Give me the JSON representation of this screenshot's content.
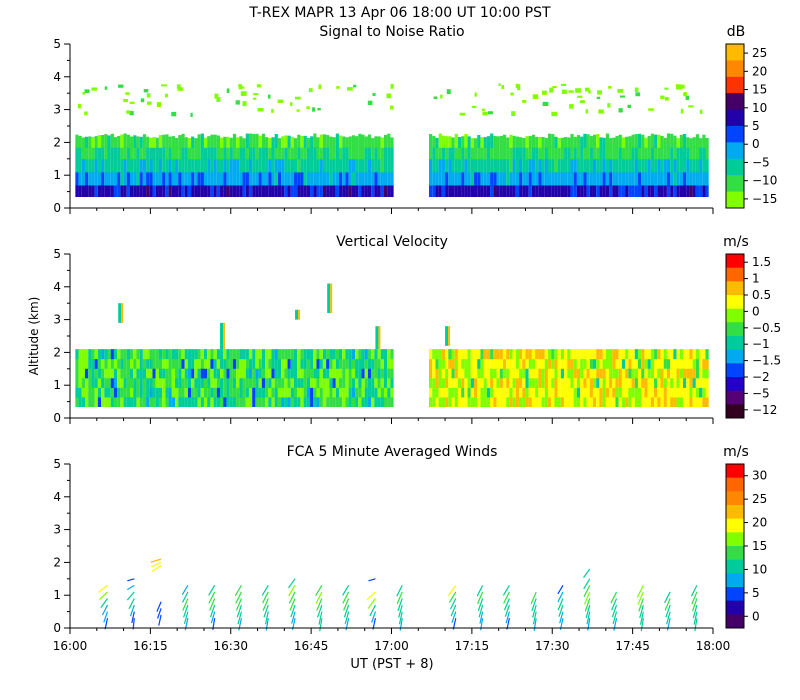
{
  "header": {
    "title": "T-REX   MAPR 13 Apr 06   18:00 UT   10:00   PST"
  },
  "colors": {
    "snr": [
      "#80ff00",
      "#33dd44",
      "#00cc99",
      "#00aaee",
      "#0044ff",
      "#2200aa",
      "#440066",
      "#ff3300",
      "#ff8800",
      "#ffbb00"
    ],
    "vv": [
      "#330022",
      "#550077",
      "#2200cc",
      "#0044ff",
      "#00aaee",
      "#00cc99",
      "#33dd44",
      "#80ff00",
      "#ffff00",
      "#ffbb00",
      "#ff6600",
      "#ff0000"
    ],
    "wind": [
      "#440066",
      "#2200aa",
      "#0044ff",
      "#00aaee",
      "#00cc99",
      "#33dd44",
      "#80ff00",
      "#ffff00",
      "#ffbb00",
      "#ff8800",
      "#ff6600",
      "#ff0000"
    ]
  },
  "chart_data": [
    {
      "type": "heatmap",
      "title": "Signal to Noise Ratio",
      "colorbar_unit": "dB",
      "colorbar_ticks": [
        "25",
        "20",
        "15",
        "10",
        "5",
        "0",
        "−5",
        "−10",
        "−15"
      ],
      "colorbar_range": [
        -17.5,
        27.5
      ],
      "y_ticks": [
        "0",
        "1",
        "2",
        "3",
        "4",
        "5"
      ],
      "ylim": [
        0,
        5
      ],
      "xlim_minutes": [
        0,
        120
      ],
      "gap_minutes": [
        60,
        67
      ],
      "data_extent_minutes": [
        [
          1,
          60
        ],
        [
          67,
          119
        ]
      ],
      "rows": [
        {
          "alt": [
            0.35,
            0.7
          ],
          "db": [
            5,
            8
          ]
        },
        {
          "alt": [
            0.7,
            1.1
          ],
          "db": [
            -2,
            0
          ]
        },
        {
          "alt": [
            1.1,
            1.5
          ],
          "db": [
            -6,
            -5
          ]
        },
        {
          "alt": [
            1.5,
            1.85
          ],
          "db": [
            -10,
            -8
          ]
        },
        {
          "alt": [
            1.85,
            2.2
          ],
          "db": [
            -12,
            -10
          ]
        }
      ],
      "scattered_echo": {
        "alt": [
          2.9,
          3.8
        ],
        "db": -15
      }
    },
    {
      "type": "heatmap",
      "title": "Vertical Velocity",
      "ylabel": "Altitude (km)",
      "colorbar_unit": "m/s",
      "colorbar_ticks": [
        "1.5",
        "1",
        "0.5",
        "0",
        "−0.5",
        "−1",
        "−1.5",
        "−2",
        "−5",
        "−12"
      ],
      "y_ticks": [
        "0",
        "1",
        "2",
        "3",
        "4",
        "5"
      ],
      "ylim": [
        0,
        5
      ],
      "xlim_minutes": [
        0,
        120
      ],
      "gap_minutes": [
        60,
        67
      ],
      "data_top_km": 2.1,
      "typical_values_ms": [
        -0.5,
        -1,
        0,
        -0.5,
        0.5
      ]
    },
    {
      "type": "scatter",
      "title": "FCA 5 Minute Averaged Winds",
      "colorbar_unit": "m/s",
      "colorbar_ticks": [
        "30",
        "25",
        "20",
        "15",
        "10",
        "5",
        "0"
      ],
      "colorbar_range": [
        -2.5,
        32.5
      ],
      "y_ticks": [
        "0",
        "1",
        "2",
        "3",
        "4",
        "5"
      ],
      "ylim": [
        0,
        5
      ],
      "x_ticks": [
        "16:00",
        "16:15",
        "16:30",
        "16:45",
        "17:00",
        "17:15",
        "17:30",
        "17:45",
        "18:00"
      ],
      "xlabel": "UT  (PST + 8)",
      "profile_times_minutes": [
        7,
        12,
        17,
        22,
        27,
        32,
        37,
        42,
        47,
        52,
        57,
        62,
        72,
        77,
        82,
        87,
        92,
        97,
        102,
        107,
        112,
        117
      ],
      "profiles": [
        {
          "t": 7,
          "alt": [
            0.3,
            0.5,
            0.7,
            0.9,
            1.1,
            1.3
          ],
          "speed": [
            5,
            7,
            9,
            12,
            15,
            19
          ],
          "dir": [
            200,
            210,
            220,
            230,
            240,
            245
          ]
        },
        {
          "t": 12,
          "alt": [
            0.3,
            0.5,
            0.7,
            0.9,
            1.1,
            1.3,
            1.5
          ],
          "speed": [
            4,
            6,
            8,
            10,
            12,
            7,
            5
          ],
          "dir": [
            190,
            200,
            210,
            220,
            235,
            250,
            260
          ]
        },
        {
          "t": 17,
          "alt": [
            0.4,
            0.6,
            0.8,
            1.9,
            2.0,
            2.1
          ],
          "speed": [
            4,
            5,
            6,
            18,
            20,
            22
          ],
          "dir": [
            200,
            210,
            215,
            250,
            255,
            260
          ]
        },
        {
          "t": 22,
          "alt": [
            0.3,
            0.5,
            0.7,
            0.9,
            1.1,
            1.3
          ],
          "speed": [
            8,
            10,
            12,
            14,
            11,
            9
          ],
          "dir": [
            200,
            205,
            210,
            215,
            220,
            225
          ]
        },
        {
          "t": 27,
          "alt": [
            0.3,
            0.5,
            0.7,
            0.9,
            1.1,
            1.3
          ],
          "speed": [
            6,
            8,
            11,
            13,
            14,
            12
          ],
          "dir": [
            195,
            205,
            210,
            215,
            220,
            225
          ]
        },
        {
          "t": 32,
          "alt": [
            0.3,
            0.5,
            0.7,
            0.9,
            1.1,
            1.3
          ],
          "speed": [
            9,
            11,
            12,
            13,
            14,
            13
          ],
          "dir": [
            200,
            205,
            210,
            215,
            220,
            225
          ]
        },
        {
          "t": 37,
          "alt": [
            0.3,
            0.5,
            0.7,
            0.9,
            1.1,
            1.3
          ],
          "speed": [
            8,
            10,
            12,
            14,
            13,
            12
          ],
          "dir": [
            195,
            200,
            210,
            215,
            220,
            225
          ]
        },
        {
          "t": 42,
          "alt": [
            0.3,
            0.5,
            0.7,
            0.9,
            1.1,
            1.3,
            1.5
          ],
          "speed": [
            7,
            9,
            11,
            13,
            14,
            15,
            12
          ],
          "dir": [
            200,
            205,
            210,
            215,
            220,
            225,
            230
          ]
        },
        {
          "t": 47,
          "alt": [
            0.3,
            0.5,
            0.7,
            0.9,
            1.1,
            1.3
          ],
          "speed": [
            10,
            11,
            12,
            14,
            15,
            13
          ],
          "dir": [
            195,
            200,
            210,
            215,
            220,
            225
          ]
        },
        {
          "t": 52,
          "alt": [
            0.3,
            0.5,
            0.7,
            0.9,
            1.1,
            1.3
          ],
          "speed": [
            8,
            10,
            12,
            13,
            14,
            12
          ],
          "dir": [
            200,
            205,
            210,
            215,
            220,
            225
          ]
        },
        {
          "t": 57,
          "alt": [
            0.3,
            0.5,
            0.7,
            0.9,
            1.1,
            1.5
          ],
          "speed": [
            6,
            8,
            12,
            16,
            18,
            5
          ],
          "dir": [
            200,
            210,
            220,
            230,
            240,
            260
          ]
        },
        {
          "t": 62,
          "alt": [
            0.3,
            0.5,
            0.7,
            0.9,
            1.1,
            1.3
          ],
          "speed": [
            8,
            10,
            11,
            12,
            13,
            12
          ],
          "dir": [
            195,
            200,
            205,
            210,
            215,
            220
          ]
        },
        {
          "t": 72,
          "alt": [
            0.3,
            0.5,
            0.7,
            0.9,
            1.1,
            1.3
          ],
          "speed": [
            6,
            8,
            10,
            11,
            14,
            18
          ],
          "dir": [
            200,
            210,
            215,
            220,
            225,
            230
          ]
        },
        {
          "t": 77,
          "alt": [
            0.3,
            0.5,
            0.7,
            0.9,
            1.1,
            1.3
          ],
          "speed": [
            7,
            8,
            10,
            12,
            13,
            12
          ],
          "dir": [
            195,
            200,
            205,
            210,
            215,
            220
          ]
        },
        {
          "t": 82,
          "alt": [
            0.3,
            0.5,
            0.7,
            0.9,
            1.1,
            1.3
          ],
          "speed": [
            6,
            8,
            10,
            12,
            14,
            12
          ],
          "dir": [
            200,
            205,
            210,
            215,
            220,
            225
          ]
        },
        {
          "t": 87,
          "alt": [
            0.3,
            0.5,
            0.7,
            0.9,
            1.1
          ],
          "speed": [
            9,
            10,
            11,
            12,
            13
          ],
          "dir": [
            195,
            200,
            205,
            210,
            215
          ]
        },
        {
          "t": 92,
          "alt": [
            0.3,
            0.5,
            0.7,
            0.9,
            1.1,
            1.3
          ],
          "speed": [
            7,
            8,
            10,
            12,
            9,
            6
          ],
          "dir": [
            200,
            205,
            210,
            215,
            220,
            225
          ]
        },
        {
          "t": 97,
          "alt": [
            0.3,
            0.5,
            0.7,
            0.9,
            1.1,
            1.3,
            1.5,
            1.8
          ],
          "speed": [
            8,
            10,
            12,
            14,
            15,
            14,
            12,
            10
          ],
          "dir": [
            195,
            200,
            205,
            210,
            215,
            220,
            225,
            230
          ]
        },
        {
          "t": 102,
          "alt": [
            0.3,
            0.5,
            0.7,
            0.9,
            1.1
          ],
          "speed": [
            9,
            10,
            11,
            12,
            13
          ],
          "dir": [
            200,
            205,
            210,
            215,
            220
          ]
        },
        {
          "t": 107,
          "alt": [
            0.3,
            0.5,
            0.7,
            0.9,
            1.1,
            1.3
          ],
          "speed": [
            10,
            11,
            12,
            14,
            15,
            16
          ],
          "dir": [
            195,
            200,
            205,
            210,
            215,
            220
          ]
        },
        {
          "t": 112,
          "alt": [
            0.3,
            0.5,
            0.7,
            0.9,
            1.1
          ],
          "speed": [
            9,
            11,
            12,
            13,
            12
          ],
          "dir": [
            200,
            205,
            210,
            215,
            220
          ]
        },
        {
          "t": 117,
          "alt": [
            0.3,
            0.5,
            0.7,
            0.9,
            1.1,
            1.3
          ],
          "speed": [
            10,
            11,
            12,
            13,
            14,
            12
          ],
          "dir": [
            195,
            200,
            205,
            210,
            215,
            220
          ]
        }
      ]
    }
  ]
}
